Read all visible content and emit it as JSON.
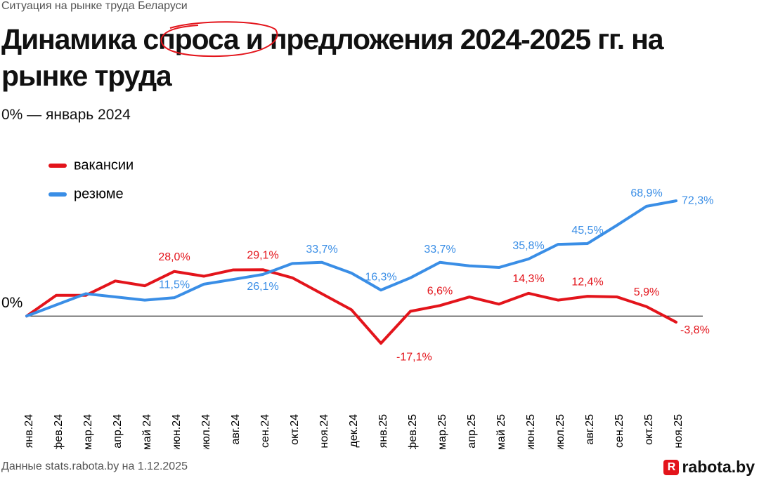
{
  "kicker": "Ситуация на рынке труда Беларуси",
  "source": "Данные stats.rabota.by на 1.12.2025",
  "logo": "rabota.by",
  "chart_data": {
    "type": "line",
    "title": "Динамика спроса и предложения 2024-2025 гг. на рынке труда",
    "subtitle": "0% — январь 2024",
    "categories": [
      "янв.24",
      "фев.24",
      "мар.24",
      "апр.24",
      "май 24",
      "июн.24",
      "июл.24",
      "авг.24",
      "сен.24",
      "окт.24",
      "ноя.24",
      "дек.24",
      "янв.25",
      "фев.25",
      "мар.25",
      "апр.25",
      "май 25",
      "июн.25",
      "июл.25",
      "авг.25",
      "сен.25",
      "окт.25",
      "ноя.25"
    ],
    "series": [
      {
        "name": "вакансии",
        "color": "#e3141b",
        "values": [
          0,
          13,
          13,
          22,
          19,
          28.0,
          25,
          29,
          29.1,
          24,
          14,
          4,
          -17.1,
          3,
          6.6,
          12,
          7.5,
          14.3,
          10,
          12.4,
          12,
          5.9,
          -3.8
        ],
        "value_labels": [
          null,
          null,
          null,
          null,
          null,
          "28,0%",
          null,
          null,
          "29,1%",
          null,
          null,
          null,
          "-17,1%",
          null,
          "6,6%",
          null,
          null,
          "14,3%",
          null,
          "12,4%",
          null,
          "5,9%",
          "-3,8%"
        ]
      },
      {
        "name": "резюме",
        "color": "#3a8ee6",
        "values": [
          0,
          7,
          14,
          12,
          10,
          11.5,
          20,
          23,
          26.1,
          33,
          33.7,
          27,
          16.3,
          24,
          33.7,
          31.5,
          30.5,
          35.8,
          45,
          45.5,
          57,
          68.9,
          72.3
        ],
        "value_labels": [
          null,
          null,
          null,
          null,
          null,
          "11,5%",
          null,
          null,
          "26,1%",
          null,
          "33,7%",
          null,
          "16,3%",
          null,
          "33,7%",
          null,
          null,
          "35,8%",
          null,
          "45,5%",
          null,
          "68,9%",
          "72,3%"
        ]
      }
    ],
    "ylim": [
      -20,
      75
    ],
    "yticks": [
      {
        "value": 0,
        "label": "0%"
      }
    ],
    "legend": "top-left"
  }
}
